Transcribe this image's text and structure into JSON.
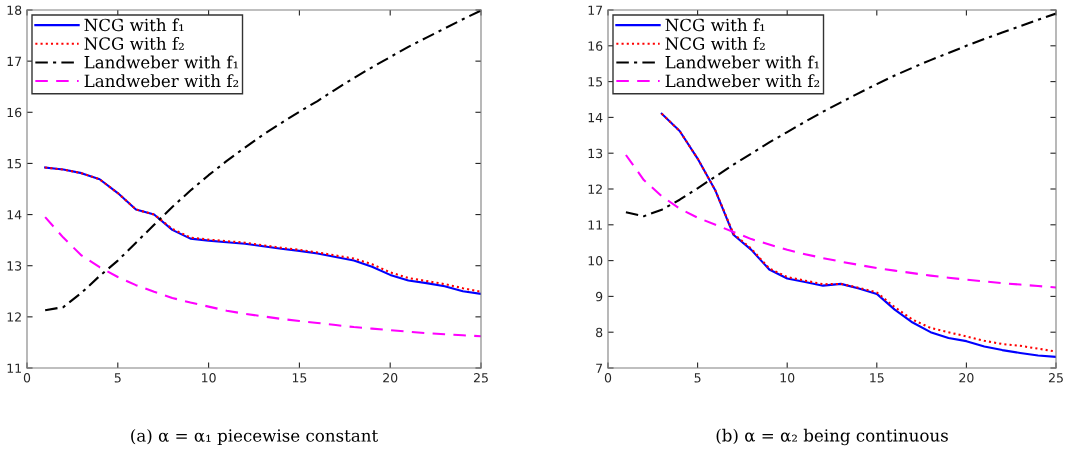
{
  "chart_data": [
    {
      "type": "line",
      "title": "(a) α = α₁ piecewise constant",
      "x": [
        1,
        2,
        3,
        4,
        5,
        6,
        7,
        8,
        9,
        10,
        11,
        12,
        13,
        14,
        15,
        16,
        17,
        18,
        19,
        20,
        21,
        22,
        23,
        24,
        25
      ],
      "xlim": [
        0,
        25
      ],
      "xticks": [
        0,
        5,
        10,
        15,
        20,
        25
      ],
      "ylim": [
        11,
        18
      ],
      "yticks": [
        11,
        12,
        13,
        14,
        15,
        16,
        17,
        18
      ],
      "grid": false,
      "legend": "top left",
      "marker": "none",
      "series": [
        {
          "name": "NCG with f₁",
          "color": "#0000ff",
          "line_style": "solid",
          "values": [
            14.92,
            14.88,
            14.81,
            14.69,
            14.42,
            14.1,
            14.0,
            13.7,
            13.53,
            13.49,
            13.46,
            13.43,
            13.38,
            13.33,
            13.29,
            13.24,
            13.17,
            13.1,
            12.98,
            12.82,
            12.71,
            12.66,
            12.6,
            12.5,
            12.45
          ]
        },
        {
          "name": "NCG with f₂",
          "color": "#ff0000",
          "line_style": "dotted",
          "values": [
            14.92,
            14.88,
            14.81,
            14.69,
            14.42,
            14.1,
            14.0,
            13.72,
            13.55,
            13.51,
            13.48,
            13.45,
            13.4,
            13.35,
            13.31,
            13.26,
            13.2,
            13.14,
            13.03,
            12.87,
            12.76,
            12.7,
            12.64,
            12.56,
            12.49
          ]
        },
        {
          "name": "Landweber with f₁",
          "color": "#000000",
          "line_style": "dashdot",
          "values": [
            12.13,
            12.19,
            12.47,
            12.8,
            13.1,
            13.45,
            13.8,
            14.15,
            14.47,
            14.77,
            15.05,
            15.31,
            15.56,
            15.79,
            16.01,
            16.22,
            16.45,
            16.67,
            16.88,
            17.08,
            17.28,
            17.46,
            17.64,
            17.82,
            17.99
          ]
        },
        {
          "name": "Landweber with f₂",
          "color": "#ff00ff",
          "line_style": "dashed",
          "values": [
            13.95,
            13.55,
            13.2,
            12.97,
            12.78,
            12.62,
            12.49,
            12.37,
            12.28,
            12.2,
            12.12,
            12.06,
            12.01,
            11.96,
            11.92,
            11.88,
            11.84,
            11.8,
            11.77,
            11.74,
            11.71,
            11.68,
            11.66,
            11.64,
            11.62
          ]
        }
      ]
    },
    {
      "type": "line",
      "title": "(b) α = α₂ being continuous",
      "x": [
        1,
        2,
        3,
        4,
        5,
        6,
        7,
        8,
        9,
        10,
        11,
        12,
        13,
        14,
        15,
        16,
        17,
        18,
        19,
        20,
        21,
        22,
        23,
        24,
        25
      ],
      "xlim": [
        0,
        25
      ],
      "xticks": [
        0,
        5,
        10,
        15,
        20,
        25
      ],
      "ylim": [
        7,
        17
      ],
      "yticks": [
        7,
        8,
        9,
        10,
        11,
        12,
        13,
        14,
        15,
        16,
        17
      ],
      "grid": false,
      "legend": "top left",
      "marker": "none",
      "series": [
        {
          "name": "NCG with f₁",
          "color": "#0000ff",
          "line_style": "solid",
          "values": [
            null,
            null,
            14.1,
            13.62,
            12.85,
            11.95,
            10.72,
            10.3,
            9.75,
            9.5,
            9.4,
            9.3,
            9.35,
            9.22,
            9.07,
            8.63,
            8.27,
            8.0,
            7.84,
            7.75,
            7.6,
            7.5,
            7.42,
            7.35,
            7.31
          ]
        },
        {
          "name": "NCG with f₂",
          "color": "#ff0000",
          "line_style": "dotted",
          "values": [
            null,
            null,
            14.1,
            13.62,
            12.85,
            11.95,
            10.75,
            10.33,
            9.78,
            9.54,
            9.44,
            9.34,
            9.35,
            9.24,
            9.11,
            8.7,
            8.35,
            8.12,
            8.0,
            7.88,
            7.76,
            7.67,
            7.62,
            7.54,
            7.46
          ]
        },
        {
          "name": "Landweber with f₁",
          "color": "#000000",
          "line_style": "dashdot",
          "values": [
            11.35,
            11.24,
            11.42,
            11.7,
            12.02,
            12.35,
            12.68,
            12.99,
            13.3,
            13.59,
            13.88,
            14.16,
            14.42,
            14.68,
            14.93,
            15.17,
            15.39,
            15.6,
            15.8,
            16.0,
            16.19,
            16.37,
            16.55,
            16.73,
            16.9
          ]
        },
        {
          "name": "Landweber with f₂",
          "color": "#ff00ff",
          "line_style": "dashed",
          "values": [
            12.95,
            12.25,
            11.8,
            11.45,
            11.2,
            11.0,
            10.8,
            10.6,
            10.45,
            10.3,
            10.18,
            10.07,
            9.97,
            9.88,
            9.79,
            9.72,
            9.65,
            9.58,
            9.52,
            9.47,
            9.42,
            9.37,
            9.33,
            9.29,
            9.25
          ]
        }
      ]
    }
  ]
}
